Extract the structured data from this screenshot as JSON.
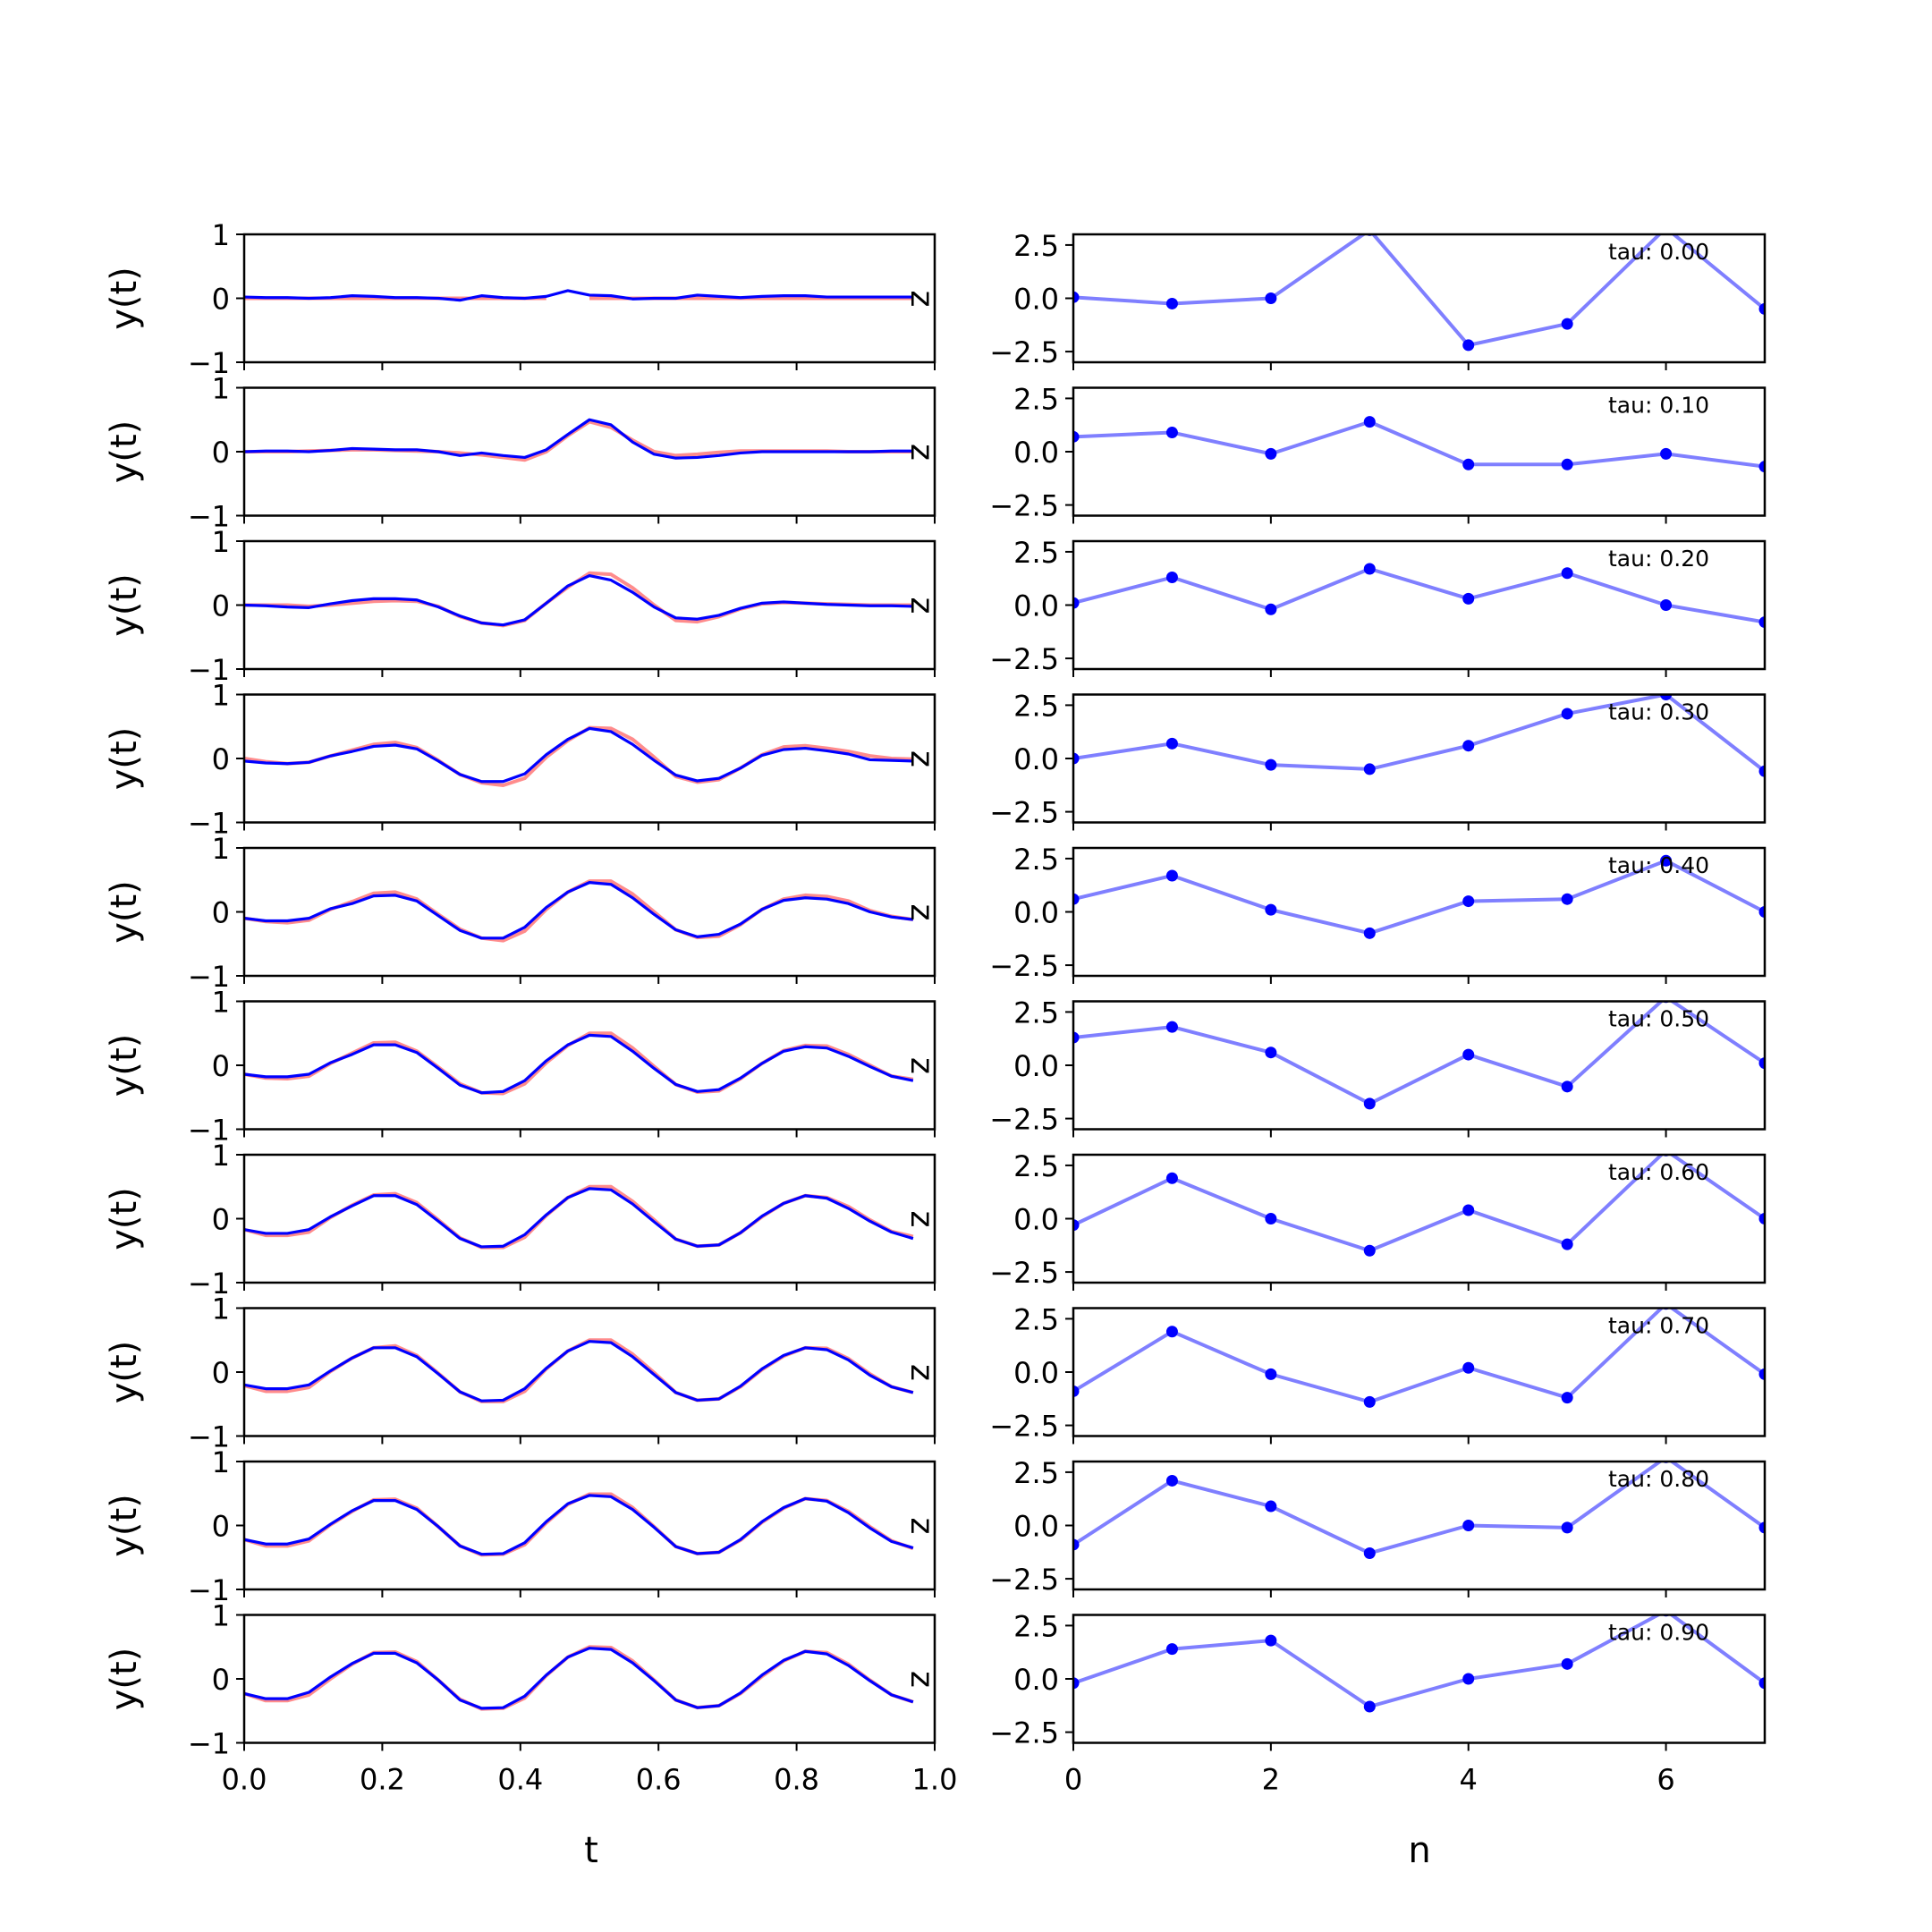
{
  "chart_data": [
    {
      "type": "line",
      "panel": "left",
      "xlabel": "t",
      "ylabel": "y(t)",
      "xlim": [
        0.0,
        1.0
      ],
      "ylim": [
        -1,
        1
      ],
      "xticks": [
        0.0,
        0.2,
        0.4,
        0.6,
        0.8,
        1.0
      ],
      "xtick_labels": [
        "0.0",
        "0.2",
        "0.4",
        "0.6",
        "0.8",
        "1.0"
      ],
      "yticks": [
        -1,
        0,
        1
      ],
      "ytick_labels": [
        "−1",
        "0",
        "1"
      ],
      "side_label": "z",
      "colors": {
        "target": "#ff6666",
        "prediction": "#0000ff"
      },
      "rows": [
        {
          "tau": "0.00",
          "target": [
            0.0,
            0.0,
            0.0,
            0.0,
            0.0,
            0.0,
            0.0,
            0.0,
            0.0,
            0.0,
            0.0,
            0.0,
            0.0,
            0.0,
            0.0,
            null,
            0.0,
            0.0,
            0.0,
            0.0,
            0.0,
            0.0,
            0.0,
            0.0,
            0.0,
            0.0,
            0.0,
            0.0,
            0.0,
            0.0,
            0.0,
            0.0
          ],
          "prediction": [
            0.02,
            0.01,
            0.01,
            0.0,
            0.01,
            0.04,
            0.03,
            0.01,
            0.01,
            0.0,
            -0.03,
            0.04,
            0.01,
            0.0,
            0.03,
            0.12,
            0.05,
            0.04,
            -0.01,
            0.0,
            0.0,
            0.05,
            0.03,
            0.01,
            0.03,
            0.04,
            0.04,
            0.02,
            0.02,
            0.02,
            0.02,
            0.02
          ]
        },
        {
          "tau": "0.10",
          "target": [
            0.0,
            0.0,
            0.0,
            0.01,
            0.02,
            0.03,
            0.03,
            0.02,
            0.01,
            0.0,
            -0.02,
            -0.05,
            -0.09,
            -0.13,
            0.0,
            0.25,
            0.47,
            0.38,
            0.18,
            0.0,
            -0.06,
            -0.04,
            -0.01,
            0.01,
            0.01,
            0.01,
            0.01,
            0.01,
            0.0,
            0.0,
            0.0,
            0.0
          ],
          "prediction": [
            0.0,
            0.01,
            0.01,
            0.0,
            0.02,
            0.05,
            0.04,
            0.03,
            0.03,
            0.0,
            -0.06,
            -0.02,
            -0.06,
            -0.09,
            0.03,
            0.27,
            0.5,
            0.42,
            0.15,
            -0.04,
            -0.1,
            -0.09,
            -0.06,
            -0.02,
            0.0,
            0.0,
            0.0,
            0.0,
            0.0,
            0.0,
            0.01,
            0.01
          ]
        },
        {
          "tau": "0.20",
          "target": [
            0.0,
            0.0,
            0.0,
            -0.02,
            0.0,
            0.03,
            0.06,
            0.07,
            0.06,
            -0.02,
            -0.18,
            -0.28,
            -0.32,
            -0.24,
            0.03,
            0.28,
            0.5,
            0.48,
            0.27,
            0.0,
            -0.24,
            -0.26,
            -0.18,
            -0.06,
            0.02,
            0.04,
            0.03,
            0.02,
            0.01,
            0.0,
            0.0,
            0.0
          ],
          "prediction": [
            0.0,
            -0.01,
            -0.03,
            -0.04,
            0.02,
            0.07,
            0.1,
            0.1,
            0.08,
            -0.03,
            -0.17,
            -0.28,
            -0.31,
            -0.23,
            0.03,
            0.3,
            0.46,
            0.39,
            0.2,
            -0.03,
            -0.2,
            -0.22,
            -0.16,
            -0.05,
            0.03,
            0.05,
            0.03,
            0.01,
            0.0,
            -0.01,
            -0.01,
            -0.02
          ]
        },
        {
          "tau": "0.30",
          "target": [
            0.0,
            -0.05,
            -0.08,
            -0.06,
            0.04,
            0.13,
            0.22,
            0.25,
            0.17,
            -0.03,
            -0.25,
            -0.38,
            -0.42,
            -0.31,
            0.02,
            0.28,
            0.48,
            0.47,
            0.3,
            0.02,
            -0.28,
            -0.37,
            -0.33,
            -0.15,
            0.06,
            0.18,
            0.2,
            0.16,
            0.11,
            0.04,
            0.0,
            -0.01
          ],
          "prediction": [
            -0.04,
            -0.07,
            -0.08,
            -0.06,
            0.04,
            0.11,
            0.19,
            0.21,
            0.15,
            -0.04,
            -0.25,
            -0.36,
            -0.36,
            -0.24,
            0.06,
            0.3,
            0.47,
            0.42,
            0.22,
            -0.03,
            -0.26,
            -0.35,
            -0.31,
            -0.15,
            0.05,
            0.14,
            0.16,
            0.12,
            0.07,
            -0.02,
            -0.03,
            -0.04
          ]
        },
        {
          "tau": "0.40",
          "target": [
            -0.1,
            -0.15,
            -0.17,
            -0.13,
            0.04,
            0.16,
            0.29,
            0.31,
            0.2,
            -0.04,
            -0.27,
            -0.41,
            -0.45,
            -0.3,
            0.04,
            0.31,
            0.48,
            0.48,
            0.28,
            0.0,
            -0.28,
            -0.4,
            -0.38,
            -0.2,
            0.04,
            0.2,
            0.26,
            0.24,
            0.17,
            0.02,
            -0.07,
            -0.12
          ],
          "prediction": [
            -0.1,
            -0.14,
            -0.14,
            -0.1,
            0.05,
            0.13,
            0.25,
            0.26,
            0.17,
            -0.06,
            -0.29,
            -0.41,
            -0.41,
            -0.24,
            0.07,
            0.31,
            0.46,
            0.43,
            0.22,
            -0.04,
            -0.28,
            -0.39,
            -0.35,
            -0.19,
            0.04,
            0.18,
            0.22,
            0.2,
            0.13,
            0.0,
            -0.08,
            -0.12
          ]
        },
        {
          "tau": "0.50",
          "target": [
            -0.14,
            -0.2,
            -0.21,
            -0.17,
            0.03,
            0.19,
            0.35,
            0.36,
            0.22,
            -0.03,
            -0.29,
            -0.43,
            -0.44,
            -0.29,
            0.04,
            0.31,
            0.5,
            0.5,
            0.27,
            -0.02,
            -0.3,
            -0.42,
            -0.4,
            -0.21,
            0.03,
            0.23,
            0.31,
            0.3,
            0.17,
            0.0,
            -0.17,
            -0.22
          ],
          "prediction": [
            -0.14,
            -0.18,
            -0.18,
            -0.14,
            0.04,
            0.17,
            0.32,
            0.32,
            0.2,
            -0.05,
            -0.31,
            -0.43,
            -0.41,
            -0.24,
            0.07,
            0.32,
            0.47,
            0.45,
            0.22,
            -0.05,
            -0.3,
            -0.41,
            -0.38,
            -0.2,
            0.03,
            0.22,
            0.29,
            0.27,
            0.14,
            -0.02,
            -0.17,
            -0.24
          ]
        },
        {
          "tau": "0.60",
          "target": [
            -0.17,
            -0.26,
            -0.26,
            -0.21,
            0.02,
            0.21,
            0.37,
            0.39,
            0.25,
            -0.02,
            -0.3,
            -0.45,
            -0.45,
            -0.29,
            0.05,
            0.33,
            0.5,
            0.5,
            0.27,
            -0.02,
            -0.32,
            -0.43,
            -0.41,
            -0.22,
            0.03,
            0.24,
            0.36,
            0.33,
            0.19,
            -0.02,
            -0.2,
            -0.28
          ],
          "prediction": [
            -0.17,
            -0.23,
            -0.23,
            -0.17,
            0.03,
            0.2,
            0.36,
            0.36,
            0.22,
            -0.04,
            -0.31,
            -0.44,
            -0.43,
            -0.25,
            0.06,
            0.33,
            0.47,
            0.45,
            0.23,
            -0.05,
            -0.32,
            -0.43,
            -0.41,
            -0.22,
            0.04,
            0.24,
            0.36,
            0.32,
            0.16,
            -0.04,
            -0.21,
            -0.31
          ]
        },
        {
          "tau": "0.70",
          "target": [
            -0.21,
            -0.3,
            -0.3,
            -0.24,
            0.01,
            0.22,
            0.38,
            0.41,
            0.26,
            -0.02,
            -0.31,
            -0.46,
            -0.46,
            -0.3,
            0.05,
            0.33,
            0.5,
            0.5,
            0.28,
            -0.01,
            -0.32,
            -0.44,
            -0.42,
            -0.23,
            0.04,
            0.25,
            0.38,
            0.37,
            0.21,
            -0.03,
            -0.23,
            -0.32
          ],
          "prediction": [
            -0.2,
            -0.26,
            -0.26,
            -0.2,
            0.02,
            0.22,
            0.38,
            0.38,
            0.24,
            -0.03,
            -0.31,
            -0.45,
            -0.44,
            -0.26,
            0.06,
            0.33,
            0.48,
            0.46,
            0.24,
            -0.04,
            -0.32,
            -0.44,
            -0.42,
            -0.22,
            0.05,
            0.26,
            0.38,
            0.35,
            0.19,
            -0.05,
            -0.23,
            -0.32
          ]
        },
        {
          "tau": "0.80",
          "target": [
            -0.22,
            -0.32,
            -0.32,
            -0.24,
            0.01,
            0.22,
            0.4,
            0.41,
            0.27,
            -0.02,
            -0.32,
            -0.46,
            -0.45,
            -0.3,
            0.04,
            0.33,
            0.49,
            0.49,
            0.28,
            -0.02,
            -0.33,
            -0.44,
            -0.42,
            -0.23,
            0.05,
            0.27,
            0.42,
            0.39,
            0.22,
            -0.02,
            -0.24,
            -0.36
          ],
          "prediction": [
            -0.22,
            -0.29,
            -0.29,
            -0.21,
            0.02,
            0.23,
            0.39,
            0.39,
            0.25,
            -0.02,
            -0.32,
            -0.45,
            -0.44,
            -0.27,
            0.06,
            0.34,
            0.47,
            0.45,
            0.25,
            -0.03,
            -0.33,
            -0.44,
            -0.42,
            -0.22,
            0.06,
            0.28,
            0.42,
            0.38,
            0.2,
            -0.04,
            -0.25,
            -0.35
          ]
        },
        {
          "tau": "0.90",
          "target": [
            -0.23,
            -0.34,
            -0.34,
            -0.25,
            0.0,
            0.23,
            0.41,
            0.42,
            0.27,
            -0.02,
            -0.32,
            -0.47,
            -0.46,
            -0.3,
            0.05,
            0.34,
            0.5,
            0.49,
            0.28,
            -0.02,
            -0.33,
            -0.45,
            -0.42,
            -0.23,
            0.04,
            0.28,
            0.43,
            0.41,
            0.23,
            -0.02,
            -0.25,
            -0.36
          ],
          "prediction": [
            -0.23,
            -0.31,
            -0.31,
            -0.21,
            0.03,
            0.24,
            0.4,
            0.4,
            0.25,
            -0.02,
            -0.33,
            -0.46,
            -0.45,
            -0.27,
            0.06,
            0.34,
            0.48,
            0.46,
            0.25,
            -0.03,
            -0.33,
            -0.45,
            -0.42,
            -0.22,
            0.06,
            0.29,
            0.43,
            0.39,
            0.21,
            -0.03,
            -0.25,
            -0.36
          ]
        }
      ],
      "x_samples": {
        "start": 0.0,
        "step": 0.03125,
        "count": 32
      }
    },
    {
      "type": "line",
      "panel": "right",
      "xlabel": "n",
      "ylabel": "",
      "xlim": [
        0,
        7
      ],
      "ylim": [
        -3,
        3
      ],
      "xticks": [
        0,
        2,
        4,
        6
      ],
      "xtick_labels": [
        "0",
        "2",
        "4",
        "6"
      ],
      "yticks": [
        -2.5,
        0.0,
        2.5
      ],
      "ytick_labels": [
        "−2.5",
        "0.0",
        "2.5"
      ],
      "annotation_prefix": "tau: ",
      "color": "#0000ff",
      "n": [
        0,
        1,
        2,
        3,
        4,
        5,
        6,
        7
      ],
      "rows": [
        {
          "tau": "0.00",
          "values": [
            0.05,
            -0.25,
            0.0,
            3.2,
            -2.2,
            -1.2,
            3.3,
            -0.5
          ]
        },
        {
          "tau": "0.10",
          "values": [
            0.7,
            0.9,
            -0.1,
            1.4,
            -0.6,
            -0.6,
            -0.1,
            -0.7
          ]
        },
        {
          "tau": "0.20",
          "values": [
            0.1,
            1.3,
            -0.2,
            1.7,
            0.3,
            1.5,
            0.0,
            -0.8
          ]
        },
        {
          "tau": "0.30",
          "values": [
            0.0,
            0.7,
            -0.3,
            -0.5,
            0.6,
            2.1,
            3.0,
            -0.6
          ]
        },
        {
          "tau": "0.40",
          "values": [
            0.6,
            1.7,
            0.1,
            -1.0,
            0.5,
            0.6,
            2.4,
            0.0
          ]
        },
        {
          "tau": "0.50",
          "values": [
            1.3,
            1.8,
            0.6,
            -1.8,
            0.5,
            -1.0,
            3.2,
            0.1
          ]
        },
        {
          "tau": "0.60",
          "values": [
            -0.3,
            1.9,
            0.0,
            -1.5,
            0.4,
            -1.2,
            3.2,
            0.0
          ]
        },
        {
          "tau": "0.70",
          "values": [
            -0.9,
            1.9,
            -0.1,
            -1.4,
            0.2,
            -1.2,
            3.2,
            -0.1
          ]
        },
        {
          "tau": "0.80",
          "values": [
            -0.9,
            2.1,
            0.9,
            -1.3,
            0.0,
            -0.1,
            3.2,
            -0.1
          ]
        },
        {
          "tau": "0.90",
          "values": [
            -0.2,
            1.4,
            1.8,
            -1.3,
            0.0,
            0.7,
            3.2,
            -0.2
          ]
        }
      ]
    }
  ]
}
